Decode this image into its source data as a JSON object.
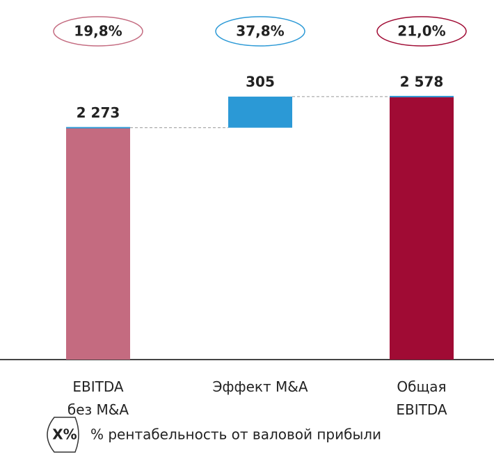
{
  "chart_data": {
    "type": "waterfall",
    "categories": [
      "EBITDA\nбез M&A",
      "Эффект M&A",
      "Общая\nEBITDA"
    ],
    "values": [
      2273,
      305,
      2578
    ],
    "value_labels": [
      "2 273",
      "305",
      "2 578"
    ],
    "measures": [
      "absolute",
      "relative",
      "total"
    ],
    "colors": [
      "#c46b80",
      "#2b99d6",
      "#a00b34"
    ],
    "margin_labels": [
      "19,8%",
      "37,8%",
      "21,0%"
    ],
    "ylim": [
      0,
      3000
    ],
    "legend": {
      "symbol": "X%",
      "text": "% рентабельность от валовой прибыли"
    }
  }
}
